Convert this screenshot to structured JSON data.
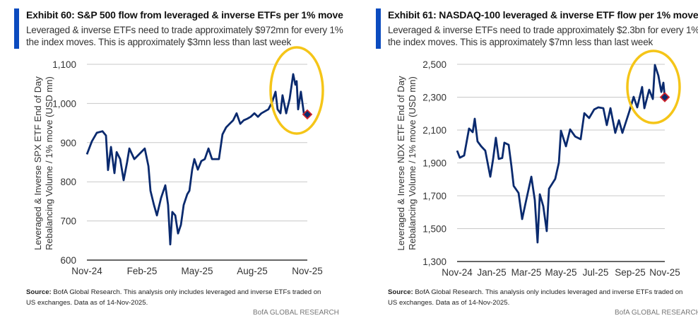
{
  "chart_data": [
    {
      "type": "line",
      "exhibit": "Exhibit 60: S&P 500 flow from leveraged & inverse ETFs per 1% move",
      "title": "Exhibit 60: S&P 500 flow from leveraged & inverse ETFs per 1% move",
      "subtitle_lines": [
        "Leveraged & inverse ETFs need to trade approximately $972mn for every 1%",
        "the index moves. This is approximately $3mn less than last week"
      ],
      "ylabel_lines": [
        "Leveraged & Inverse SPX ETF End of Day",
        "Rebalancing Volume / 1% move (USD mn)"
      ],
      "xlabel": "",
      "x_unit": "months since Nov-24",
      "xlim": [
        0,
        12
      ],
      "x_ticks": [
        {
          "pos": 0,
          "label": "Nov-24"
        },
        {
          "pos": 3,
          "label": "Feb-25"
        },
        {
          "pos": 6,
          "label": "May-25"
        },
        {
          "pos": 9,
          "label": "Aug-25"
        },
        {
          "pos": 12,
          "label": "Nov-25"
        }
      ],
      "ylim": [
        600,
        1100
      ],
      "y_ticks": [
        {
          "value": 600,
          "label": "600"
        },
        {
          "value": 700,
          "label": "700"
        },
        {
          "value": 800,
          "label": "800"
        },
        {
          "value": 900,
          "label": "900"
        },
        {
          "value": 1000,
          "label": "1,000"
        },
        {
          "value": 1100,
          "label": "1,100"
        }
      ],
      "grid": true,
      "line_color": "#0a2a6e",
      "highlight_color": "#f5c518",
      "marker_color": "#d0202a",
      "latest_value": 972,
      "series": [
        {
          "name": "SPX L&I ETF rebalancing per 1% move",
          "points": [
            [
              0,
              870
            ],
            [
              0.27,
              903
            ],
            [
              0.54,
              925
            ],
            [
              0.85,
              929
            ],
            [
              1.04,
              918
            ],
            [
              1.15,
              830
            ],
            [
              1.31,
              889
            ],
            [
              1.5,
              822
            ],
            [
              1.62,
              876
            ],
            [
              1.81,
              858
            ],
            [
              2.0,
              804
            ],
            [
              2.19,
              850
            ],
            [
              2.31,
              885
            ],
            [
              2.58,
              858
            ],
            [
              2.96,
              876
            ],
            [
              3.15,
              885
            ],
            [
              3.35,
              840
            ],
            [
              3.46,
              777
            ],
            [
              3.65,
              741
            ],
            [
              3.81,
              714
            ],
            [
              4.04,
              759
            ],
            [
              4.27,
              791
            ],
            [
              4.42,
              741
            ],
            [
              4.54,
              640
            ],
            [
              4.65,
              723
            ],
            [
              4.81,
              714
            ],
            [
              4.96,
              668
            ],
            [
              5.12,
              690
            ],
            [
              5.27,
              741
            ],
            [
              5.46,
              768
            ],
            [
              5.58,
              777
            ],
            [
              5.73,
              831
            ],
            [
              5.85,
              858
            ],
            [
              6.04,
              831
            ],
            [
              6.23,
              853
            ],
            [
              6.42,
              858
            ],
            [
              6.62,
              885
            ],
            [
              6.81,
              858
            ],
            [
              7.19,
              858
            ],
            [
              7.38,
              921
            ],
            [
              7.58,
              939
            ],
            [
              7.77,
              948
            ],
            [
              7.96,
              957
            ],
            [
              8.15,
              975
            ],
            [
              8.35,
              948
            ],
            [
              8.54,
              957
            ],
            [
              8.73,
              961
            ],
            [
              8.92,
              966
            ],
            [
              9.12,
              975
            ],
            [
              9.31,
              966
            ],
            [
              9.5,
              975
            ],
            [
              9.88,
              985
            ],
            [
              10.08,
              1003
            ],
            [
              10.27,
              1030
            ],
            [
              10.38,
              985
            ],
            [
              10.54,
              975
            ],
            [
              10.65,
              1021
            ],
            [
              10.85,
              975
            ],
            [
              11.04,
              1012
            ],
            [
              11.23,
              1075
            ],
            [
              11.35,
              1048
            ],
            [
              11.42,
              1057
            ],
            [
              11.5,
              985
            ],
            [
              11.65,
              1030
            ],
            [
              11.81,
              975
            ],
            [
              12,
              972
            ]
          ]
        }
      ],
      "source_label": "Source:",
      "source_text": " BofA Global Research.  This analysis only includes leveraged and inverse ETFs traded on",
      "source_text2": "US exchanges.  Data as of 14-Nov-2025.",
      "brand": "BofA GLOBAL RESEARCH"
    },
    {
      "type": "line",
      "title": "Exhibit 61: NASDAQ-100 leveraged & inverse ETF flow per 1% move",
      "subtitle_lines": [
        "Leveraged & inverse ETFs need to trade approximately $2.3bn for every 1%",
        "the index moves. This is approximately $7mn less than last week"
      ],
      "ylabel_lines": [
        "Leveraged & Inverse NDX ETF End of Day",
        "Rebalancing Volume / 1% move (USD mn)"
      ],
      "xlabel": "",
      "x_unit": "months since Nov-24",
      "xlim": [
        0,
        12
      ],
      "x_ticks": [
        {
          "pos": 0,
          "label": "Nov-24"
        },
        {
          "pos": 2,
          "label": "Jan-25"
        },
        {
          "pos": 4,
          "label": "Mar-25"
        },
        {
          "pos": 6,
          "label": "May-25"
        },
        {
          "pos": 8,
          "label": "Jul-25"
        },
        {
          "pos": 10,
          "label": "Sep-25"
        },
        {
          "pos": 12,
          "label": "Nov-25"
        }
      ],
      "ylim": [
        1300,
        2500
      ],
      "y_ticks": [
        {
          "value": 1300,
          "label": "1,300"
        },
        {
          "value": 1500,
          "label": "1,500"
        },
        {
          "value": 1700,
          "label": "1,700"
        },
        {
          "value": 1900,
          "label": "1,900"
        },
        {
          "value": 2100,
          "label": "2,100"
        },
        {
          "value": 2300,
          "label": "2,300"
        },
        {
          "value": 2500,
          "label": "2,500"
        }
      ],
      "grid": true,
      "line_color": "#0a2a6e",
      "highlight_color": "#f5c518",
      "marker_color": "#d0202a",
      "latest_value": 2300,
      "series": [
        {
          "name": "NDX L&I ETF rebalancing per 1% move",
          "points": [
            [
              0,
              1975
            ],
            [
              0.16,
              1932
            ],
            [
              0.41,
              1945
            ],
            [
              0.69,
              2109
            ],
            [
              0.9,
              2087
            ],
            [
              1.02,
              2169
            ],
            [
              1.18,
              2031
            ],
            [
              1.39,
              2001
            ],
            [
              1.63,
              1975
            ],
            [
              1.92,
              1816
            ],
            [
              2.08,
              1924
            ],
            [
              2.24,
              2053
            ],
            [
              2.41,
              1924
            ],
            [
              2.61,
              1930
            ],
            [
              2.73,
              2023
            ],
            [
              2.98,
              2010
            ],
            [
              3.14,
              1881
            ],
            [
              3.27,
              1760
            ],
            [
              3.55,
              1717
            ],
            [
              3.76,
              1558
            ],
            [
              3.96,
              1657
            ],
            [
              4.29,
              1816
            ],
            [
              4.49,
              1674
            ],
            [
              4.65,
              1416
            ],
            [
              4.78,
              1709
            ],
            [
              4.98,
              1636
            ],
            [
              5.18,
              1485
            ],
            [
              5.31,
              1743
            ],
            [
              5.67,
              1803
            ],
            [
              5.88,
              1902
            ],
            [
              6.0,
              2096
            ],
            [
              6.29,
              2001
            ],
            [
              6.53,
              2104
            ],
            [
              6.82,
              2061
            ],
            [
              7.14,
              2044
            ],
            [
              7.35,
              2203
            ],
            [
              7.63,
              2173
            ],
            [
              7.92,
              2225
            ],
            [
              8.16,
              2238
            ],
            [
              8.45,
              2233
            ],
            [
              8.65,
              2130
            ],
            [
              8.86,
              2233
            ],
            [
              9.14,
              2083
            ],
            [
              9.35,
              2160
            ],
            [
              9.55,
              2083
            ],
            [
              9.96,
              2216
            ],
            [
              10.2,
              2302
            ],
            [
              10.41,
              2238
            ],
            [
              10.69,
              2362
            ],
            [
              10.82,
              2233
            ],
            [
              11.1,
              2345
            ],
            [
              11.31,
              2289
            ],
            [
              11.43,
              2496
            ],
            [
              11.63,
              2431
            ],
            [
              11.8,
              2332
            ],
            [
              11.92,
              2388
            ],
            [
              12,
              2300
            ]
          ]
        }
      ],
      "source_label": "Source:",
      "source_text": " BofA Global Research.  This analysis only includes leveraged and inverse ETFs traded on",
      "source_text2": "US exchanges.  Data as of 14-Nov-2025.",
      "brand": "BofA GLOBAL RESEARCH"
    }
  ]
}
